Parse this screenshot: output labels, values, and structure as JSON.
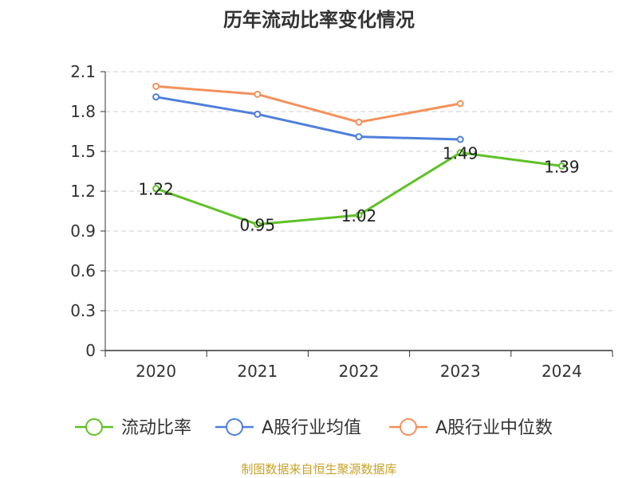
{
  "chart_data": {
    "type": "line",
    "title": "历年流动比率变化情况",
    "categories": [
      "2020",
      "2021",
      "2022",
      "2023",
      "2024"
    ],
    "y_ticks": [
      "0",
      "0.3",
      "0.6",
      "0.9",
      "1.2",
      "1.5",
      "1.8",
      "2.1"
    ],
    "ylim": [
      0,
      2.1
    ],
    "grid": true,
    "legend_position": "bottom",
    "series": [
      {
        "name": "流动比率",
        "color": "#5ec126",
        "values": [
          1.22,
          0.95,
          1.02,
          1.49,
          1.39
        ],
        "labels": [
          "1.22",
          "0.95",
          "1.02",
          "1.49",
          "1.39"
        ]
      },
      {
        "name": "A股行业均值",
        "color": "#4f7fdc",
        "values": [
          1.91,
          1.78,
          1.61,
          1.59,
          null
        ]
      },
      {
        "name": "A股行业中位数",
        "color": "#f4915c",
        "values": [
          1.99,
          1.93,
          1.72,
          1.86,
          null
        ]
      }
    ],
    "source": "制图数据来自恒生聚源数据库"
  }
}
